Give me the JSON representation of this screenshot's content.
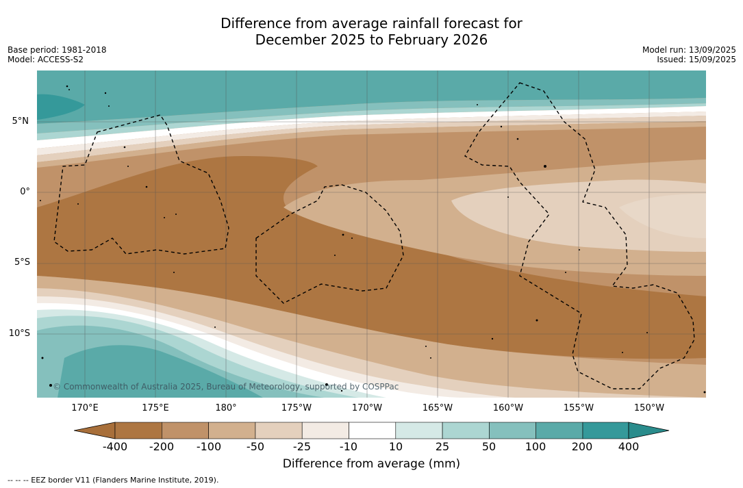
{
  "title_line1": "Difference from average rainfall forecast for",
  "title_line2": "December 2025 to February 2026",
  "base_period": "Base period: 1981-2018",
  "model": "Model: ACCESS-S2",
  "model_run": "Model run: 13/09/2025",
  "issued": "Issued: 15/09/2025",
  "lat_labels": [
    "5°N",
    "0°",
    "5°S",
    "10°S"
  ],
  "lon_labels": [
    "170°E",
    "175°E",
    "180°",
    "175°W",
    "170°W",
    "165°W",
    "160°W",
    "155°W",
    "150°W"
  ],
  "copyright": "© Commonwealth of Australia 2025, Bureau of Meteorology, supported by COSPPac",
  "colorbar": {
    "ticks": [
      "-400",
      "-200",
      "-100",
      "-50",
      "-25",
      "-10",
      "10",
      "25",
      "50",
      "100",
      "200",
      "400"
    ],
    "colors": [
      "#a86f3a",
      "#ad7642",
      "#c09269",
      "#d2b08e",
      "#e4d0bd",
      "#f3ebe4",
      "#ffffff",
      "#d5e9e6",
      "#acd6d2",
      "#85c0bd",
      "#5aaaa8",
      "#35999a",
      "#2a8c8c"
    ],
    "title": "Difference from average (mm)"
  },
  "footnote": "--  --  -- EEZ border V11 (Flanders Marine Institute, 2019)."
}
